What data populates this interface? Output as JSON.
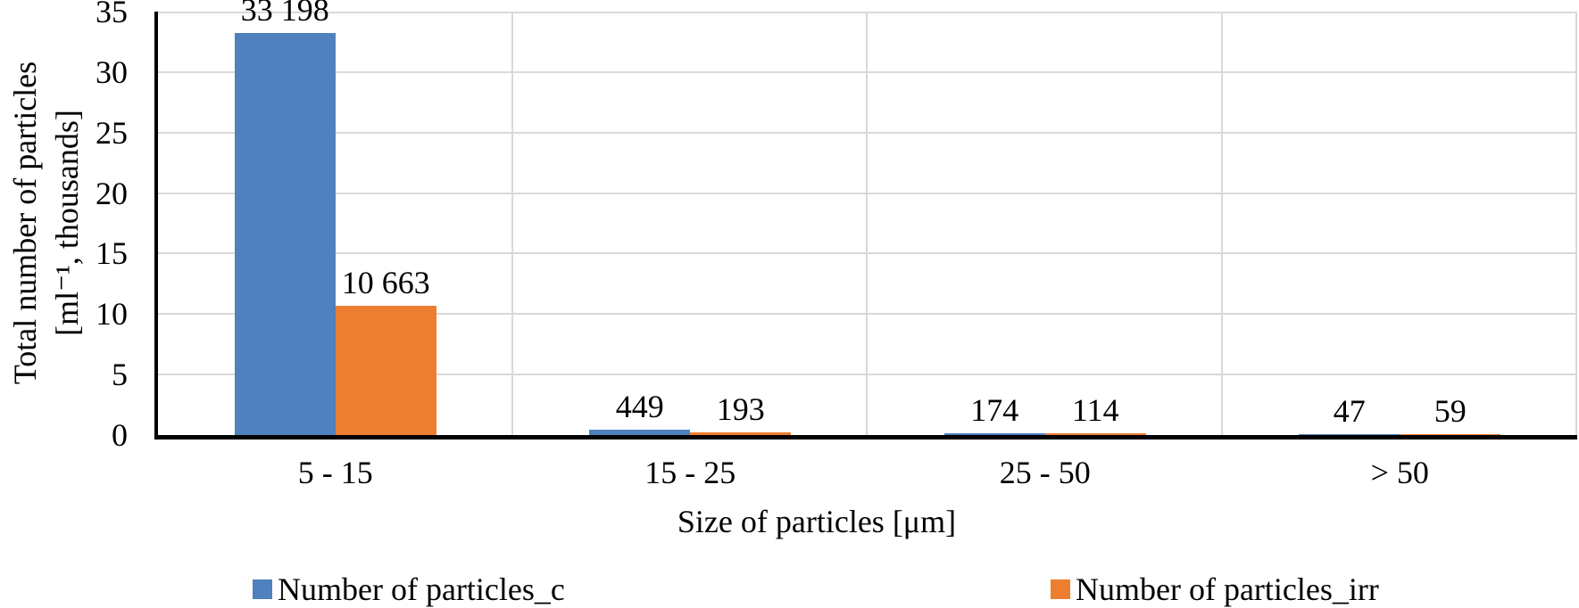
{
  "chart_data": {
    "type": "bar",
    "title": "",
    "categories": [
      "5 - 15",
      "15 - 25",
      "25 - 50",
      "> 50"
    ],
    "series": [
      {
        "name": "Number of particles_c",
        "color": "#4E81BD",
        "values": [
          33198,
          449,
          174,
          47
        ],
        "labels": [
          "33 198",
          "449",
          "174",
          "47"
        ]
      },
      {
        "name": "Number of particles_irr",
        "color": "#ED7D31",
        "values": [
          10663,
          193,
          114,
          59
        ],
        "labels": [
          "10 663",
          "193",
          "114",
          "59"
        ]
      }
    ],
    "xlabel": "Size of particles [μm]",
    "ylabel_lines": [
      "Total number of particles",
      "[ml⁻¹, thousands]"
    ],
    "y_ticks": [
      0,
      5,
      10,
      15,
      20,
      25,
      30,
      35
    ],
    "ylim": [
      0,
      35
    ],
    "value_unit": "per ml, displayed in thousands",
    "grid": true,
    "legend_position": "bottom"
  },
  "colors": {
    "background": "#FFFFFF",
    "gridline": "#D9D9D9",
    "axis": "#000000",
    "text": "#000000"
  }
}
